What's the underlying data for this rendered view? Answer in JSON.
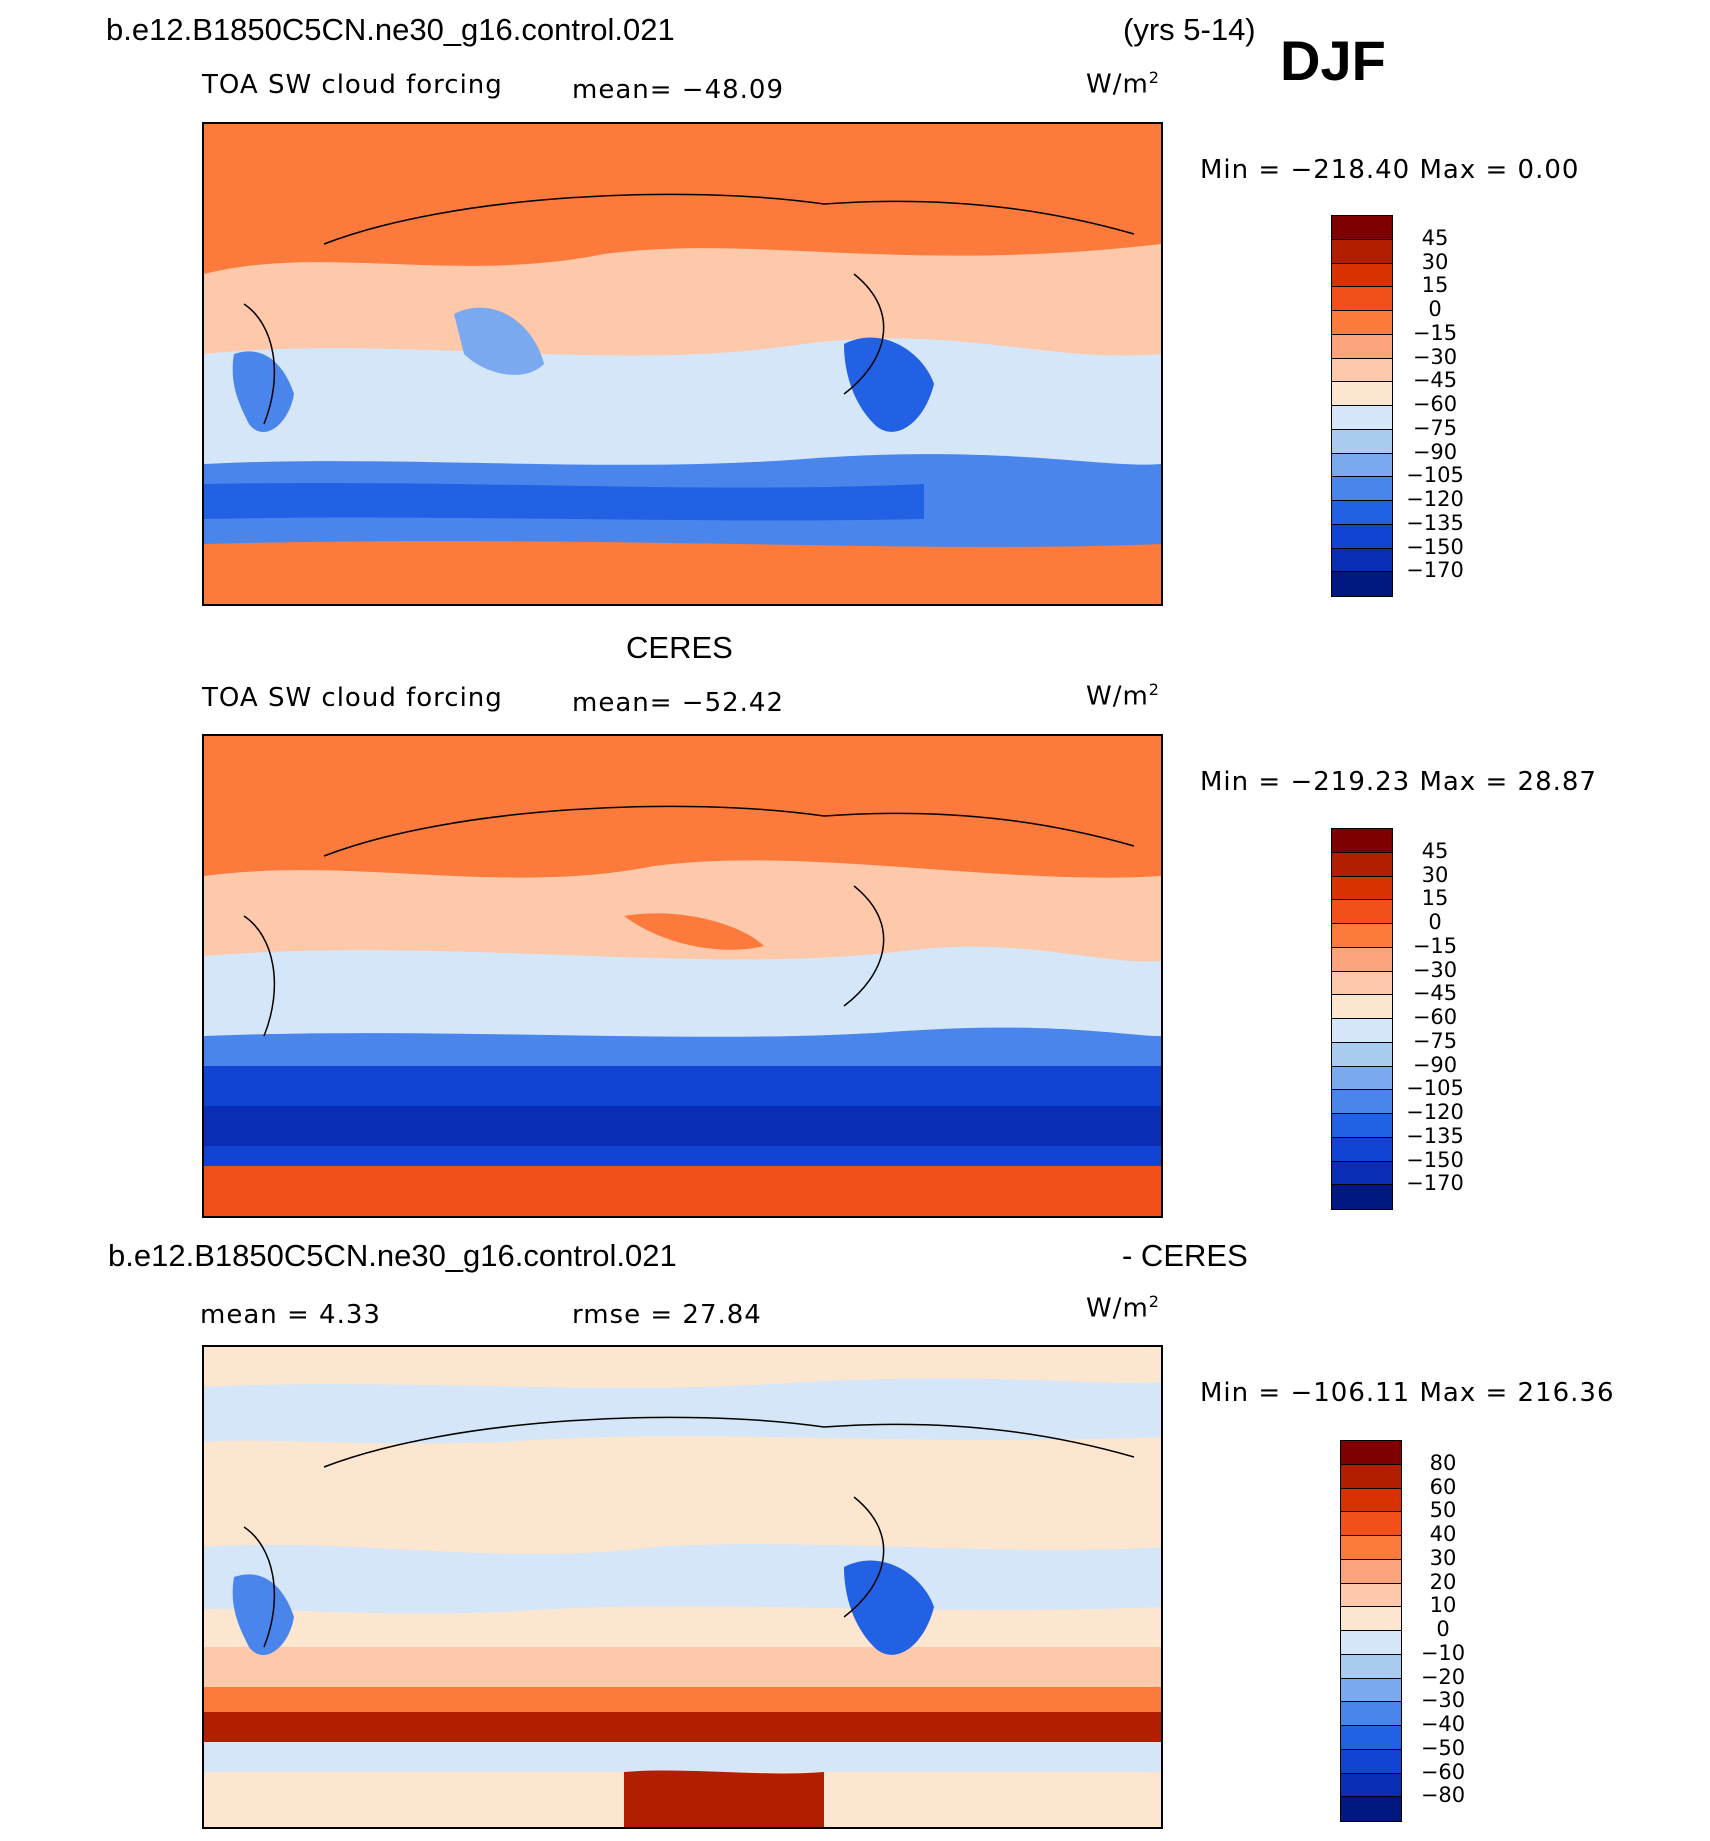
{
  "figure": {
    "season": "DJF"
  },
  "chart_data": [
    {
      "type": "heatmap",
      "case_title": "b.e12.B1850C5CN.ne30_g16.control.021",
      "years": "(yrs 5-14)",
      "variable": "TOA SW cloud forcing",
      "stat_text": "mean= −48.09",
      "mean": -48.09,
      "units": "W/m",
      "units_exp": "2",
      "range_text": "Min = −218.40 Max =    0.00",
      "min": -218.4,
      "max": 0.0,
      "levels": [
        "45",
        "30",
        "15",
        "0",
        "−15",
        "−30",
        "−45",
        "−60",
        "−75",
        "−90",
        "−105",
        "−120",
        "−135",
        "−150",
        "−170"
      ],
      "palette": [
        "#7f0000",
        "#b21e00",
        "#d73200",
        "#f34f1a",
        "#fb7a3c",
        "#fba37a",
        "#fdc9aa",
        "#fde6d0",
        "#d4e6f7",
        "#a9cbf0",
        "#7aa9ef",
        "#4a85ec",
        "#2361e4",
        "#1244d3",
        "#0a2db5",
        "#001880"
      ]
    },
    {
      "type": "heatmap",
      "case_title": "CERES",
      "variable": "TOA SW cloud forcing",
      "stat_text": "mean= −52.42",
      "mean": -52.42,
      "units": "W/m",
      "units_exp": "2",
      "range_text": "Min = −219.23 Max =   28.87",
      "min": -219.23,
      "max": 28.87,
      "levels": [
        "45",
        "30",
        "15",
        "0",
        "−15",
        "−30",
        "−45",
        "−60",
        "−75",
        "−90",
        "−105",
        "−120",
        "−135",
        "−150",
        "−170"
      ],
      "palette": [
        "#7f0000",
        "#b21e00",
        "#d73200",
        "#f34f1a",
        "#fb7a3c",
        "#fba37a",
        "#fdc9aa",
        "#fde6d0",
        "#d4e6f7",
        "#a9cbf0",
        "#7aa9ef",
        "#4a85ec",
        "#2361e4",
        "#1244d3",
        "#0a2db5",
        "#001880"
      ]
    },
    {
      "type": "heatmap",
      "case_title": "b.e12.B1850C5CN.ne30_g16.control.021",
      "case_title_suffix": "- CERES",
      "mean_text": "mean =    4.33",
      "rmse_text": "rmse =   27.84",
      "mean": 4.33,
      "rmse": 27.84,
      "units": "W/m",
      "units_exp": "2",
      "range_text": "Min = −106.11 Max = 216.36",
      "min": -106.11,
      "max": 216.36,
      "levels": [
        "80",
        "60",
        "50",
        "40",
        "30",
        "20",
        "10",
        "0",
        "−10",
        "−20",
        "−30",
        "−40",
        "−50",
        "−60",
        "−80"
      ],
      "palette": [
        "#7f0000",
        "#b21e00",
        "#d73200",
        "#f34f1a",
        "#fb7a3c",
        "#fba37a",
        "#fdc9aa",
        "#fde6d0",
        "#d4e6f7",
        "#a9cbf0",
        "#7aa9ef",
        "#4a85ec",
        "#2361e4",
        "#1244d3",
        "#0a2db5",
        "#001880"
      ]
    }
  ]
}
